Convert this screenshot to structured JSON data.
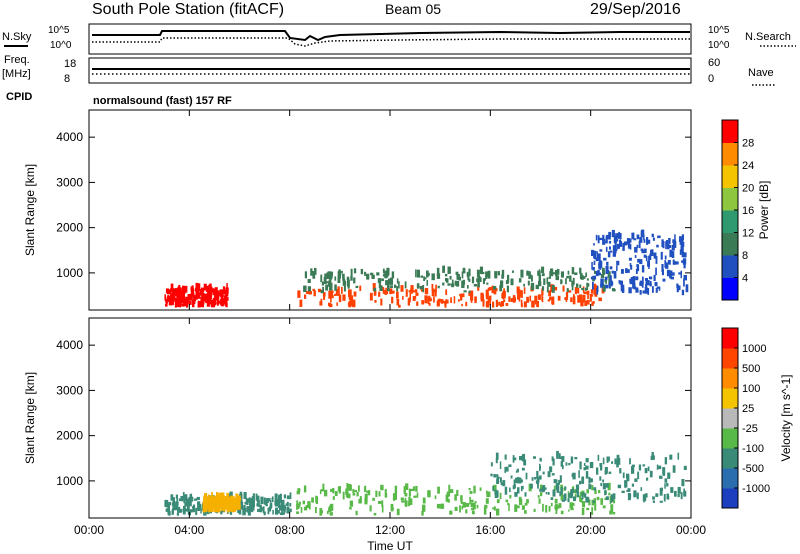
{
  "header": {
    "station": "South Pole Station (fitACF)",
    "beam": "Beam 05",
    "date": "29/Sep/2016"
  },
  "strip": {
    "nsky_label": "N.Sky",
    "nsearch_label": "N.Search",
    "freq_label": "Freq.",
    "freq_unit": "[MHz]",
    "nave_label": "Nave",
    "cpid_label": "CPID",
    "cpid_value": "normalsound (fast) 157 RF",
    "noise_ticks": [
      "10^5",
      "10^0"
    ],
    "freq_ticks": [
      "18",
      "8"
    ],
    "nave_ticks": [
      "60",
      "0"
    ]
  },
  "chart_data": [
    {
      "type": "heatmap",
      "panel": "power",
      "xlabel": "Time UT",
      "ylabel": "Slant Range [km]",
      "x_ticks": [
        "00:00",
        "04:00",
        "08:00",
        "12:00",
        "16:00",
        "20:00",
        "00:00"
      ],
      "xlim": [
        0,
        24
      ],
      "ylim": [
        180,
        4600
      ],
      "y_ticks": [
        1000,
        2000,
        3000,
        4000
      ],
      "colorbar": {
        "label": "Power [dB]",
        "ticks": [
          4,
          8,
          12,
          16,
          20,
          24,
          28
        ],
        "range": [
          0,
          32
        ],
        "colors": [
          "#0000ff",
          "#2050c0",
          "#3a7a55",
          "#2f9a70",
          "#8ec63f",
          "#f5c400",
          "#ff8c00",
          "#ff0000"
        ]
      },
      "scatter_regions": [
        {
          "t": [
            3.0,
            5.5
          ],
          "r": [
            230,
            620
          ],
          "color": "#ff0000"
        },
        {
          "t": [
            8.2,
            20.5
          ],
          "r": [
            230,
            620
          ],
          "color": "#ff4000"
        },
        {
          "t": [
            8.5,
            21.0
          ],
          "r": [
            550,
            1000
          ],
          "color": "#3a7a55"
        },
        {
          "t": [
            20.0,
            23.8
          ],
          "r": [
            500,
            1800
          ],
          "color": "#2050c0"
        }
      ]
    },
    {
      "type": "heatmap",
      "panel": "velocity",
      "xlabel": "Time UT",
      "ylabel": "Slant Range [km]",
      "x_ticks": [
        "00:00",
        "04:00",
        "08:00",
        "12:00",
        "16:00",
        "20:00",
        "00:00"
      ],
      "xlim": [
        0,
        24
      ],
      "ylim": [
        180,
        4600
      ],
      "y_ticks": [
        1000,
        2000,
        3000,
        4000
      ],
      "colorbar": {
        "label": "Velocity [m s^-1]",
        "ticks": [
          "1000",
          "500",
          "100",
          "25",
          "-25",
          "-100",
          "-500",
          "-1000"
        ],
        "colors": [
          "#1c3fbf",
          "#2b6eb0",
          "#3a8a78",
          "#58b848",
          "#b9b9b9",
          "#f5c400",
          "#ff8c00",
          "#ff4500",
          "#ff0000"
        ]
      },
      "scatter_regions": [
        {
          "t": [
            3.0,
            8.0
          ],
          "r": [
            230,
            620
          ],
          "color": "#3a8a78"
        },
        {
          "t": [
            4.5,
            6.0
          ],
          "r": [
            300,
            600
          ],
          "color": "#f5b000"
        },
        {
          "t": [
            8.2,
            21.0
          ],
          "r": [
            230,
            800
          ],
          "color": "#58b848"
        },
        {
          "t": [
            16.0,
            23.8
          ],
          "r": [
            500,
            1500
          ],
          "color": "#3a8a78"
        }
      ]
    }
  ]
}
